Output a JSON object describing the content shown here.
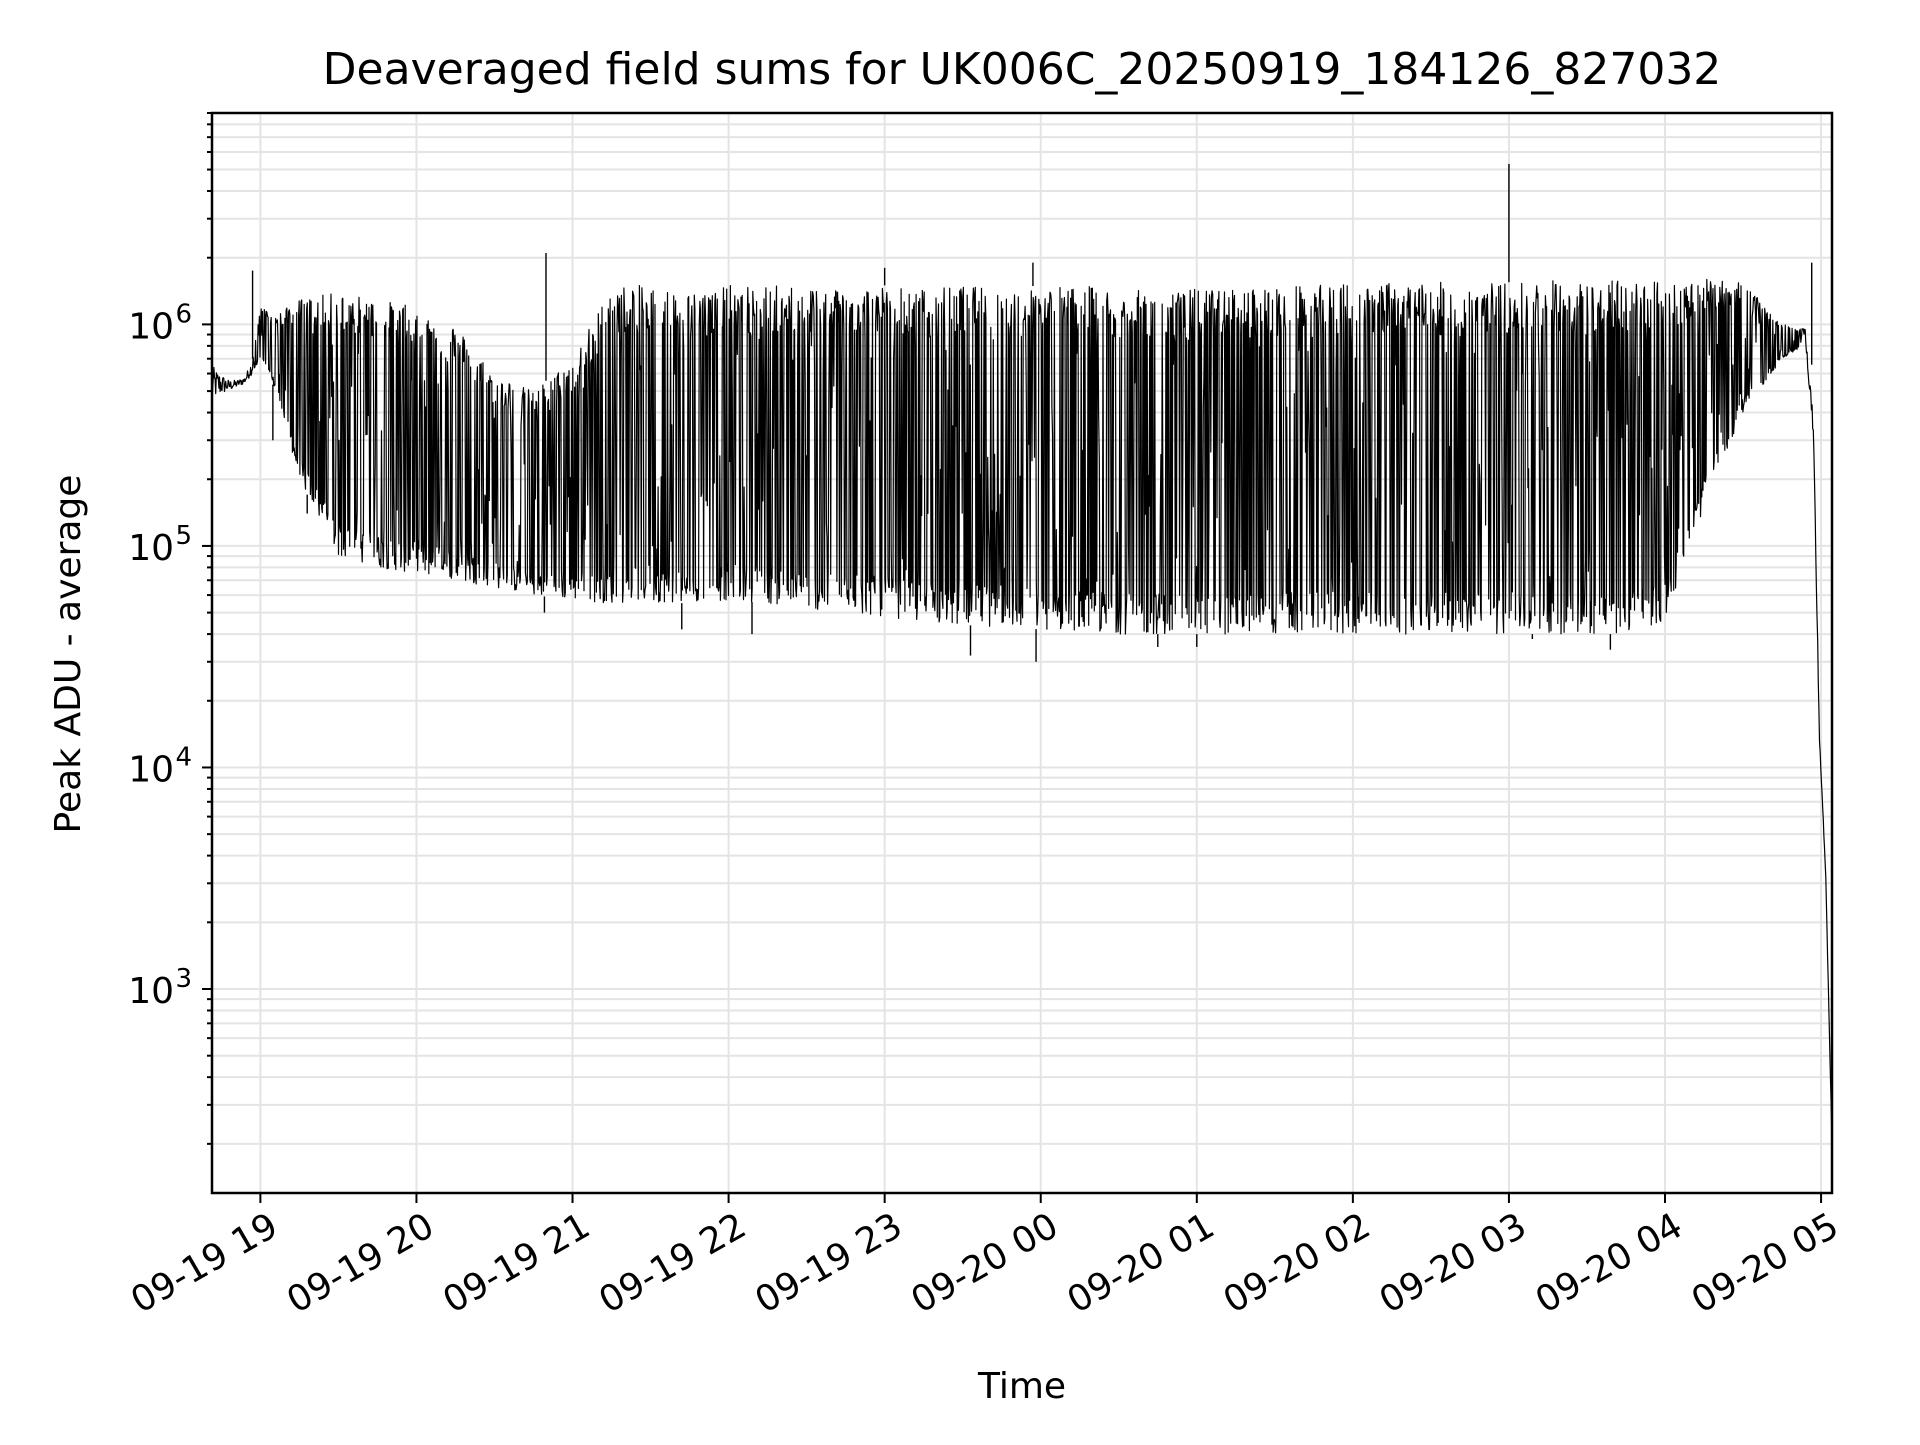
{
  "chart_data": {
    "type": "line",
    "title": "Deaveraged field sums for UK006C_20250919_184126_827032",
    "xlabel": "Time",
    "ylabel": "Peak ADU - average",
    "yscale": "log",
    "grid": true,
    "grid_minor": true,
    "xlim_hours_from_2025-09-19_18:00": [
      0.69,
      11.07
    ],
    "ylim": [
      120,
      9000000
    ],
    "x_ticks": [
      {
        "label": "09-19 19",
        "hour": 1
      },
      {
        "label": "09-19 20",
        "hour": 2
      },
      {
        "label": "09-19 21",
        "hour": 3
      },
      {
        "label": "09-19 22",
        "hour": 4
      },
      {
        "label": "09-19 23",
        "hour": 5
      },
      {
        "label": "09-20 00",
        "hour": 6
      },
      {
        "label": "09-20 01",
        "hour": 7
      },
      {
        "label": "09-20 02",
        "hour": 8
      },
      {
        "label": "09-20 03",
        "hour": 9
      },
      {
        "label": "09-20 04",
        "hour": 10
      },
      {
        "label": "09-20 05",
        "hour": 11
      }
    ],
    "y_ticks": [
      {
        "base": "10",
        "exp": "3",
        "value": 1000
      },
      {
        "base": "10",
        "exp": "4",
        "value": 10000
      },
      {
        "base": "10",
        "exp": "5",
        "value": 100000
      },
      {
        "base": "10",
        "exp": "6",
        "value": 1000000
      }
    ],
    "series": [
      {
        "name": "deaveraged field sum",
        "color": "#000000",
        "x_hours": [
          0.69,
          0.75,
          0.8,
          0.85,
          0.9,
          0.95,
          1.0,
          1.1,
          1.25,
          1.5,
          1.75,
          2.0,
          2.25,
          2.5,
          2.75,
          3.0,
          3.25,
          3.5,
          3.75,
          4.0,
          4.25,
          4.5,
          4.75,
          5.0,
          5.25,
          5.5,
          5.75,
          6.0,
          6.25,
          6.5,
          6.75,
          7.0,
          7.25,
          7.5,
          7.75,
          8.0,
          8.25,
          8.5,
          8.75,
          9.0,
          9.25,
          9.5,
          9.75,
          10.0,
          10.25,
          10.5,
          10.75,
          10.9,
          10.95,
          10.99,
          11.03,
          11.07
        ],
        "low_envelope": [
          450000,
          480000,
          500000,
          520000,
          540000,
          600000,
          700000,
          500000,
          200000,
          90000,
          80000,
          75000,
          70000,
          65000,
          60000,
          57000,
          55000,
          56000,
          55000,
          57000,
          55000,
          52000,
          50000,
          48000,
          45000,
          44000,
          43000,
          42000,
          41000,
          40000,
          40000,
          40000,
          40000,
          40000,
          40000,
          40000,
          40000,
          40000,
          40000,
          40000,
          40000,
          40000,
          40000,
          45000,
          150000,
          400000,
          700000,
          800000,
          200000,
          12000,
          3000,
          200
        ],
        "high_envelope": [
          650000,
          600000,
          560000,
          560000,
          580000,
          700000,
          1200000,
          1100000,
          1300000,
          1400000,
          1300000,
          1200000,
          1000000,
          600000,
          500000,
          700000,
          1500000,
          1500000,
          1400000,
          1500000,
          1500000,
          1500000,
          1500000,
          1500000,
          1450000,
          1500000,
          1450000,
          1500000,
          1500000,
          1450000,
          1400000,
          1450000,
          1450000,
          1500000,
          1500000,
          1550000,
          1550000,
          1550000,
          1550000,
          1550000,
          1600000,
          1550000,
          1600000,
          1600000,
          1600000,
          1550000,
          1000000,
          950000,
          600000,
          15000,
          3500,
          200
        ],
        "spikes": [
          {
            "hour": 0.95,
            "value": 1750000
          },
          {
            "hour": 2.83,
            "value": 2100000
          },
          {
            "hour": 5.0,
            "value": 1800000
          },
          {
            "hour": 5.95,
            "value": 1900000
          },
          {
            "hour": 9.0,
            "value": 5300000
          },
          {
            "hour": 10.94,
            "value": 1900000
          }
        ],
        "dips": [
          {
            "hour": 1.08,
            "value": 300000
          },
          {
            "hour": 1.3,
            "value": 140000
          },
          {
            "hour": 2.82,
            "value": 50000
          },
          {
            "hour": 3.7,
            "value": 42000
          },
          {
            "hour": 4.15,
            "value": 40000
          },
          {
            "hour": 5.55,
            "value": 32000
          },
          {
            "hour": 5.97,
            "value": 30000
          },
          {
            "hour": 6.75,
            "value": 35000
          },
          {
            "hour": 7.0,
            "value": 35000
          },
          {
            "hour": 9.15,
            "value": 38000
          },
          {
            "hour": 9.65,
            "value": 34000
          }
        ]
      }
    ]
  }
}
